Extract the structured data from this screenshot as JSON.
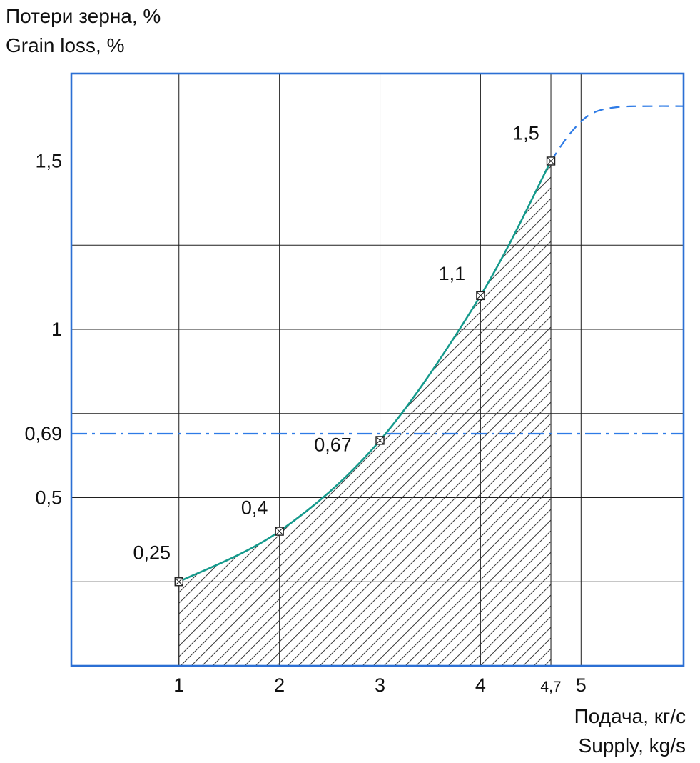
{
  "chart_data": {
    "type": "line",
    "ylabel_lines": [
      "Потери зерна, %",
      "Grain loss, %"
    ],
    "xlabel_lines": [
      "Подача, кг/с",
      "Supply, kg/s"
    ],
    "xlim": [
      -0.07,
      6.02
    ],
    "ylim": [
      0,
      1.76
    ],
    "grid": true,
    "grid_x": [
      1,
      2,
      3,
      4,
      4.7,
      5
    ],
    "grid_y": [
      0.25,
      0.5,
      0.75,
      1,
      1.25,
      1.5
    ],
    "x_ticks": [
      {
        "value": 1,
        "label": "1"
      },
      {
        "value": 2,
        "label": "2"
      },
      {
        "value": 3,
        "label": "3"
      },
      {
        "value": 4,
        "label": "4"
      },
      {
        "value": 4.7,
        "label": "4,7",
        "small": true
      },
      {
        "value": 5,
        "label": "5"
      }
    ],
    "y_ticks": [
      {
        "value": 1.5,
        "label": "1,5"
      },
      {
        "value": 1,
        "label": "1"
      },
      {
        "value": 0.69,
        "label": "0,69"
      },
      {
        "value": 0.5,
        "label": "0,5"
      }
    ],
    "series": [
      {
        "name": "grain-loss-curve",
        "style": "solid",
        "color": "#159a8c",
        "points": [
          [
            1,
            0.25
          ],
          [
            2,
            0.4
          ],
          [
            3,
            0.67
          ],
          [
            4,
            1.1
          ],
          [
            4.7,
            1.5
          ]
        ],
        "point_labels": [
          "0,25",
          "0,4",
          "0,67",
          "1,1",
          "1,5"
        ],
        "markers": true
      },
      {
        "name": "extrapolated-curve",
        "style": "dashed",
        "color": "#2e7be6",
        "points": [
          [
            4.7,
            1.5
          ],
          [
            4.9,
            1.585
          ],
          [
            5.1,
            1.64
          ],
          [
            5.35,
            1.66
          ],
          [
            5.7,
            1.663
          ],
          [
            6.02,
            1.663
          ]
        ],
        "markers": false
      }
    ],
    "threshold_line": {
      "value": 0.69,
      "label": "0,69",
      "style": "dash-dot",
      "color": "#2e7be6"
    },
    "hatch_region": {
      "x_from": 1,
      "x_to": 4.7
    },
    "colors": {
      "border": "#2b6fd4",
      "grid": "#1f1f1f",
      "hatch": "#3c3c3c",
      "marker_stroke": "#1f1f1f",
      "text": "#101010"
    }
  }
}
